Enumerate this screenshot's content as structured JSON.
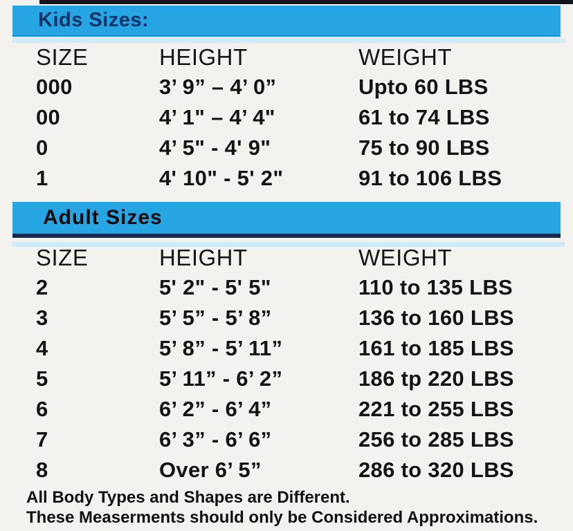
{
  "colors": {
    "bar_blue": "#27a4e2",
    "bar_pale_blue": "#cfeaf8",
    "kids_title_navy": "#0e3168",
    "adult_title_black": "#0a0a0a",
    "top_edge_dark": "#14141e",
    "adult_bar_edge_navy": "#17294d",
    "body_text": "#141414",
    "background": "#f3f2ef"
  },
  "kids": {
    "title": "Kids Sizes:",
    "headers": {
      "size": "SIZE",
      "height": "HEIGHT",
      "weight": "WEIGHT"
    },
    "rows": [
      {
        "size": "000",
        "height": "3’ 9” – 4’ 0”",
        "weight": "Upto 60 LBS"
      },
      {
        "size": "00",
        "height": "4’ 1\" – 4’ 4\"",
        "weight": "61 to 74 LBS"
      },
      {
        "size": "0",
        "height": "4’ 5\" - 4' 9\"",
        "weight": "75 to 90 LBS"
      },
      {
        "size": "1",
        "height": "4' 10\" - 5' 2\"",
        "weight": "91 to 106 LBS"
      }
    ]
  },
  "adult": {
    "title": "Adult Sizes",
    "headers": {
      "size": "SIZE",
      "height": "HEIGHT",
      "weight": "WEIGHT"
    },
    "rows": [
      {
        "size": "2",
        "height": "5' 2\" - 5' 5\"",
        "weight": "110 to 135 LBS"
      },
      {
        "size": "3",
        "height": "5’ 5” - 5’ 8”",
        "weight": "136 to 160 LBS"
      },
      {
        "size": "4",
        "height": "5’ 8” - 5’ 11”",
        "weight": "161 to 185 LBS"
      },
      {
        "size": "5",
        "height": "5’ 11” - 6’ 2”",
        "weight": "186 tp 220 LBS"
      },
      {
        "size": "6",
        "height": "6’ 2” - 6’ 4”",
        "weight": "221 to 255 LBS"
      },
      {
        "size": "7",
        "height": "6’ 3” - 6’ 6”",
        "weight": "256 to 285 LBS"
      },
      {
        "size": "8",
        "height": "Over 6’ 5”",
        "weight": "286 to 320 LBS"
      }
    ]
  },
  "footer": {
    "line1": "All Body Types and Shapes are Different.",
    "line2": "These Measerments should only be Considered Approximations."
  }
}
